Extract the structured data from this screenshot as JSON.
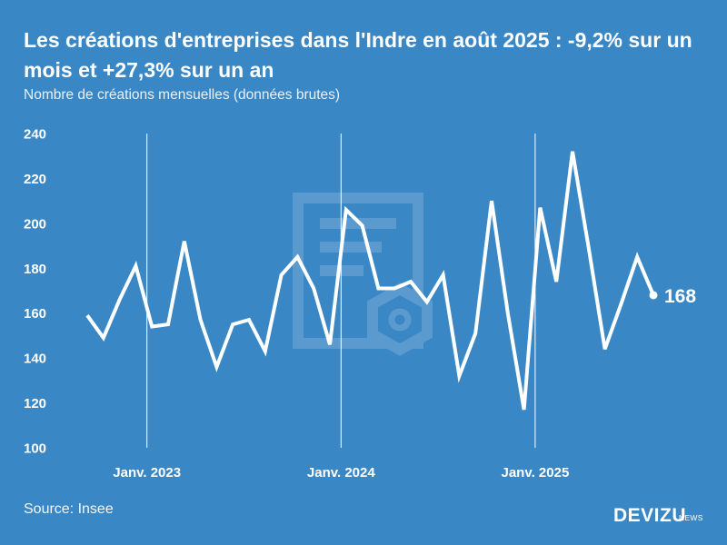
{
  "chart_data": {
    "type": "line",
    "title": "Les créations d'entreprises dans l'Indre en août 2025 : -9,2% sur un mois et +27,3% sur un an",
    "subtitle": "Nombre de créations mensuelles (données brutes)",
    "xlabel": "",
    "ylabel": "",
    "ylim": [
      100,
      240
    ],
    "yticks": [
      240,
      220,
      200,
      180,
      160,
      140,
      120,
      100
    ],
    "x_tick_labels": [
      {
        "label": "Janv. 2023",
        "index": 4
      },
      {
        "label": "Janv. 2024",
        "index": 16
      },
      {
        "label": "Janv. 2025",
        "index": 28
      }
    ],
    "categories": [
      "2022-09",
      "2022-10",
      "2022-11",
      "2022-12",
      "2023-01",
      "2023-02",
      "2023-03",
      "2023-04",
      "2023-05",
      "2023-06",
      "2023-07",
      "2023-08",
      "2023-09",
      "2023-10",
      "2023-11",
      "2023-12",
      "2024-01",
      "2024-02",
      "2024-03",
      "2024-04",
      "2024-05",
      "2024-06",
      "2024-07",
      "2024-08",
      "2024-09",
      "2024-10",
      "2024-11",
      "2024-12",
      "2025-01",
      "2025-02",
      "2025-03",
      "2025-04",
      "2025-05",
      "2025-06",
      "2025-07",
      "2025-08"
    ],
    "series": [
      {
        "name": "Créations d'entreprises",
        "values": [
          159,
          149,
          166,
          181,
          154,
          155,
          192,
          157,
          136,
          155,
          157,
          143,
          177,
          185,
          171,
          146,
          206,
          199,
          171,
          171,
          174,
          165,
          177,
          132,
          151,
          210,
          160,
          117,
          207,
          174,
          232,
          189,
          144,
          164,
          185,
          168
        ]
      }
    ],
    "last_value_label": "168",
    "grid": "vertical lines at January ticks",
    "legend": "none"
  },
  "footer": {
    "source": "Source: Insee",
    "brand": "DEVIZU",
    "brand_sub": "NEWS"
  }
}
